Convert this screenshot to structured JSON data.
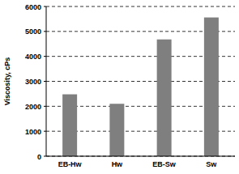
{
  "chart_data": {
    "type": "bar",
    "y_label": "Viscosity, cPs",
    "categories": [
      "EB-Hw",
      "Hw",
      "EB-Sw",
      "Sw"
    ],
    "values": [
      2480,
      2100,
      4680,
      5560
    ],
    "color": "#7f7f7f",
    "ylim": [
      0,
      6000
    ],
    "yticks": [
      0,
      1000,
      2000,
      3000,
      4000,
      5000,
      6000
    ],
    "grid": true
  }
}
